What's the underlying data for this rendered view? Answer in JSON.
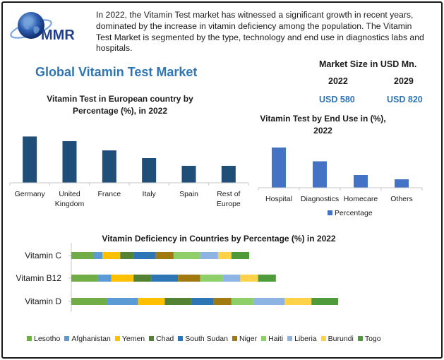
{
  "logo": {
    "text": "MMR",
    "icon": "globe-icon"
  },
  "intro": "In 2022, the Vitamin Test market has witnessed a significant growth in recent years, dominated by the increase in vitamin deficiency among the population. The Vitamin Test Market is segmented by the type, technology and end use in diagnostics labs and hospitals.",
  "main_title": "Global Vitamin Test Market",
  "market_size": {
    "title": "Market Size in USD Mn.",
    "years": [
      "2022",
      "2029"
    ],
    "values": [
      "USD 580",
      "USD 820"
    ]
  },
  "colors": {
    "accent": "#2e75b6",
    "eu_bar": "#1f4e79",
    "enduse_bar": "#4472c4"
  },
  "chart_data": [
    {
      "type": "bar",
      "title": "Vitamin Test in European country by Percentage (%), in 2022",
      "categories": [
        "Germany",
        "United Kingdom",
        "France",
        "Italy",
        "Spain",
        "Rest of Europe"
      ],
      "values": [
        30,
        27,
        21,
        16,
        11,
        11
      ],
      "ylim": [
        0,
        32
      ],
      "grid": false,
      "legend": "none"
    },
    {
      "type": "bar",
      "title": "Vitamin Test by End Use in (%), 2022",
      "categories": [
        "Hospital",
        "Diagnostics",
        "Homecare",
        "Others"
      ],
      "series": [
        {
          "name": "Percentage",
          "values": [
            38,
            25,
            12,
            8
          ]
        }
      ],
      "ylim": [
        0,
        40
      ],
      "grid": false,
      "legend": "bottom"
    },
    {
      "type": "bar",
      "orientation": "horizontal",
      "stacked": true,
      "title": "Vitamin Deficiency in Countries by Percentage (%) in 2022",
      "categories": [
        "Vitamin C",
        "Vitamin B12",
        "Vitamin D"
      ],
      "series": [
        {
          "name": "Lesotho",
          "color": "#70ad47",
          "values": [
            5,
            6,
            8
          ]
        },
        {
          "name": "Afghanistan",
          "color": "#5b9bd5",
          "values": [
            2,
            3,
            7
          ]
        },
        {
          "name": "Yemen",
          "color": "#ffc000",
          "values": [
            4,
            5,
            6
          ]
        },
        {
          "name": "Chad",
          "color": "#548235",
          "values": [
            3,
            4,
            6
          ]
        },
        {
          "name": "South Sudan",
          "color": "#2e75b6",
          "values": [
            5,
            6,
            5
          ]
        },
        {
          "name": "Niger",
          "color": "#a07a0e",
          "values": [
            4,
            5,
            4
          ]
        },
        {
          "name": "Haiti",
          "color": "#8fcf6a",
          "values": [
            6,
            5,
            5
          ]
        },
        {
          "name": "Liberia",
          "color": "#8db4e2",
          "values": [
            4,
            4,
            7
          ]
        },
        {
          "name": "Burundi",
          "color": "#ffd24a",
          "values": [
            3,
            4,
            6
          ]
        },
        {
          "name": "Togo",
          "color": "#4f9a3a",
          "values": [
            4,
            4,
            6
          ]
        }
      ],
      "grid": false,
      "legend": "bottom"
    }
  ]
}
